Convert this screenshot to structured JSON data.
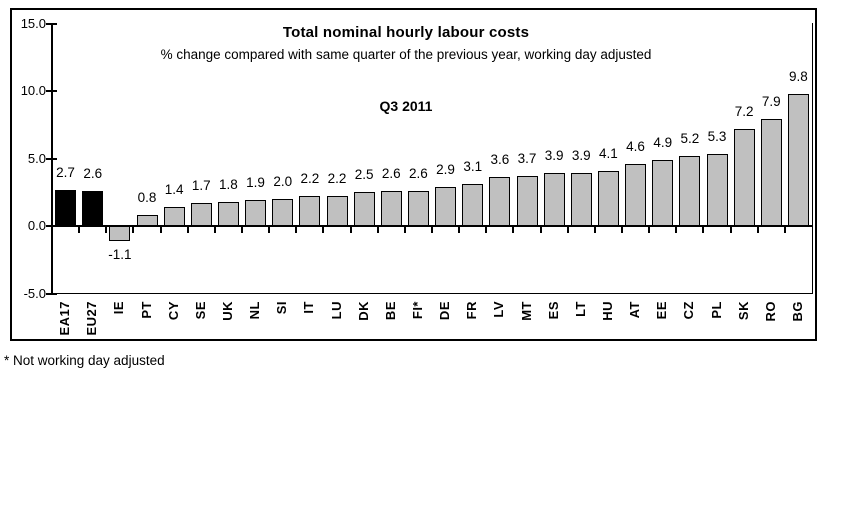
{
  "chart_data": {
    "type": "bar",
    "title": "Total nominal hourly labour costs",
    "subtitle": "% change compared with same quarter of the previous year, working day adjusted",
    "period": "Q3 2011",
    "categories": [
      "EA17",
      "EU27",
      "IE",
      "PT",
      "CY",
      "SE",
      "UK",
      "NL",
      "SI",
      "IT",
      "LU",
      "DK",
      "BE",
      "FI*",
      "DE",
      "FR",
      "LV",
      "MT",
      "ES",
      "LT",
      "HU",
      "AT",
      "EE",
      "CZ",
      "PL",
      "SK",
      "RO",
      "BG"
    ],
    "values": [
      2.7,
      2.6,
      -1.1,
      0.8,
      1.4,
      1.7,
      1.8,
      1.9,
      2.0,
      2.2,
      2.2,
      2.5,
      2.6,
      2.6,
      2.9,
      3.1,
      3.6,
      3.7,
      3.9,
      3.9,
      4.1,
      4.6,
      4.9,
      5.2,
      5.3,
      7.2,
      7.9,
      9.8
    ],
    "value_labels": [
      "2.7",
      "2.6",
      "-1.1",
      "0.8",
      "1.4",
      "1.7",
      "1.8",
      "1.9",
      "2.0",
      "2.2",
      "2.2",
      "2.5",
      "2.6",
      "2.6",
      "2.9",
      "3.1",
      "3.6",
      "3.7",
      "3.9",
      "3.9",
      "4.1",
      "4.6",
      "4.9",
      "5.2",
      "5.3",
      "7.2",
      "7.9",
      "9.8"
    ],
    "highlighted_categories": [
      "EA17",
      "EU27"
    ],
    "bar_color_default": "#c0c0c0",
    "bar_color_highlight": "#000000",
    "axis_color": "#000000",
    "y_ticks": [
      "15.0",
      "10.0",
      "5.0",
      "0.0",
      "-5.0"
    ],
    "y_tick_values": [
      15,
      10,
      5,
      0,
      -5
    ],
    "ylim": [
      -5,
      15
    ],
    "grid": false,
    "legend": false
  },
  "footnote": "* Not working day adjusted"
}
